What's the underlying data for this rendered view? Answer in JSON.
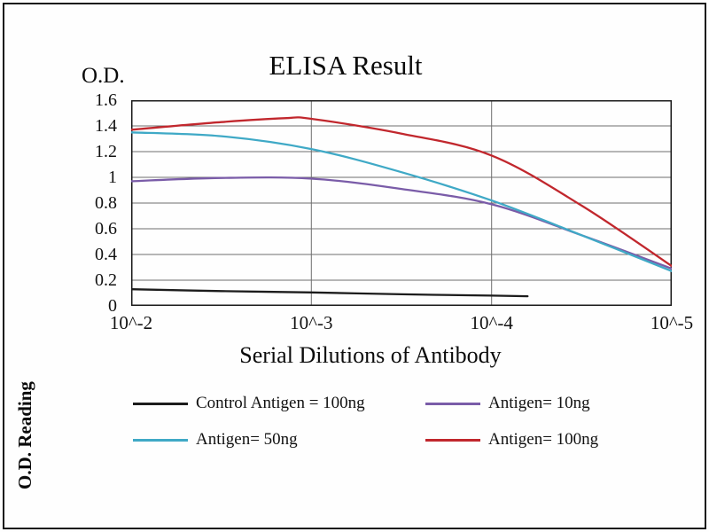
{
  "chart_data": {
    "type": "line",
    "title": "ELISA Result",
    "od_label": "O.D.",
    "ylabel": "O.D. Reading",
    "xlabel": "Serial Dilutions of Antibody",
    "x_tick_labels": [
      "10^-2",
      "10^-3",
      "10^-4",
      "10^-5"
    ],
    "y_tick_labels": [
      "0",
      "0.2",
      "0.4",
      "0.6",
      "0.8",
      "1",
      "1.2",
      "1.4",
      "1.6"
    ],
    "ylim": [
      0,
      1.6
    ],
    "grid": true,
    "legend_position": "bottom",
    "frame_color": "#1a1a1a",
    "grid_color": "#6e6e6e",
    "series": [
      {
        "name": "Control Antigen = 100ng",
        "color": "#1c1c1c",
        "points": [
          [
            0,
            0.13
          ],
          [
            0.5,
            0.115
          ],
          [
            1,
            0.105
          ],
          [
            1.5,
            0.09
          ],
          [
            2,
            0.08
          ],
          [
            2.2,
            0.075
          ]
        ]
      },
      {
        "name": "Antigen= 10ng",
        "color": "#7a5ca8",
        "points": [
          [
            0,
            0.97
          ],
          [
            0.5,
            0.995
          ],
          [
            1,
            0.99
          ],
          [
            1.5,
            0.91
          ],
          [
            2,
            0.79
          ],
          [
            2.5,
            0.55
          ],
          [
            3,
            0.29
          ]
        ]
      },
      {
        "name": "Antigen= 50ng",
        "color": "#3fa9c6",
        "points": [
          [
            0,
            1.35
          ],
          [
            0.5,
            1.32
          ],
          [
            1,
            1.22
          ],
          [
            1.5,
            1.04
          ],
          [
            2,
            0.82
          ],
          [
            2.5,
            0.55
          ],
          [
            3,
            0.27
          ]
        ]
      },
      {
        "name": "Antigen= 100ng",
        "color": "#c1272d",
        "points": [
          [
            0,
            1.37
          ],
          [
            0.5,
            1.43
          ],
          [
            0.85,
            1.46
          ],
          [
            1,
            1.455
          ],
          [
            1.5,
            1.34
          ],
          [
            2,
            1.17
          ],
          [
            2.5,
            0.78
          ],
          [
            3,
            0.31
          ]
        ]
      }
    ]
  }
}
